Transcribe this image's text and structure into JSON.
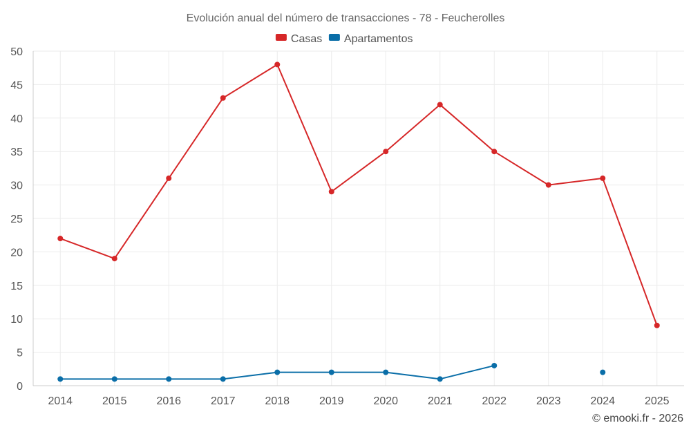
{
  "chart_data": {
    "type": "line",
    "title": "Evolución anual del número de transacciones - 78 - Feucherolles",
    "categories": [
      "2014",
      "2015",
      "2016",
      "2017",
      "2018",
      "2019",
      "2020",
      "2021",
      "2022",
      "2023",
      "2024",
      "2025"
    ],
    "ylim": [
      0,
      50
    ],
    "yticks": [
      0,
      5,
      10,
      15,
      20,
      25,
      30,
      35,
      40,
      45,
      50
    ],
    "grid": true,
    "legend_position": "top-center",
    "series": [
      {
        "name": "Casas",
        "color": "#d62728",
        "values": [
          22,
          19,
          31,
          43,
          48,
          29,
          35,
          42,
          35,
          30,
          31,
          9
        ]
      },
      {
        "name": "Apartamentos",
        "color": "#0a6ea8",
        "values": [
          1,
          1,
          1,
          1,
          2,
          2,
          2,
          1,
          3,
          null,
          2,
          null
        ]
      }
    ]
  },
  "credit": "© emooki.fr - 2026"
}
